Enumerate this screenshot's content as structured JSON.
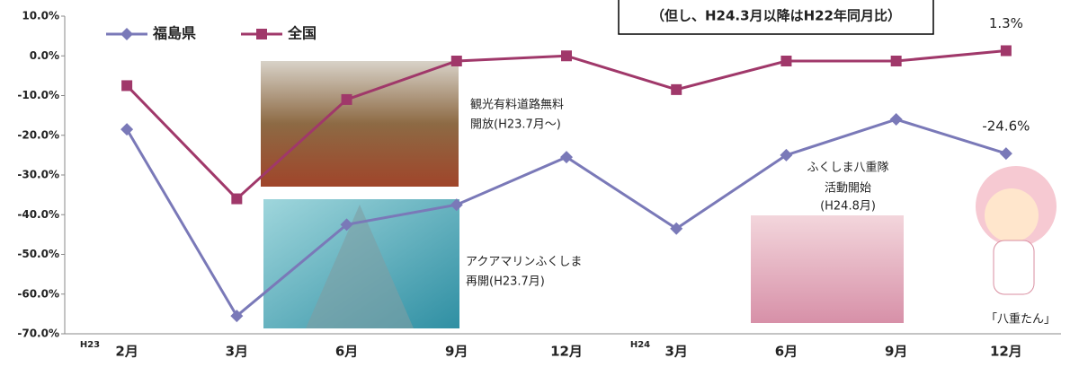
{
  "chart_data": {
    "type": "line",
    "categories": [
      "2月",
      "3月",
      "6月",
      "9月",
      "12月",
      "3月",
      "6月",
      "9月",
      "12月"
    ],
    "era_labels": [
      "H23",
      "H24"
    ],
    "series": [
      {
        "name": "福島県",
        "color": "#7a79b8",
        "marker": "diamond",
        "values": [
          -18.5,
          -65.5,
          -42.5,
          -37.5,
          -25.5,
          -43.5,
          -25,
          -16,
          -24.6
        ],
        "value_labels": [
          null,
          null,
          null,
          null,
          null,
          null,
          null,
          null,
          "-24.6%"
        ]
      },
      {
        "name": "全国",
        "color": "#a0386a",
        "marker": "square",
        "values": [
          -7.5,
          -36,
          -11,
          -1.3,
          0,
          -8.5,
          -1.3,
          -1.3,
          1.3
        ],
        "value_labels": [
          null,
          null,
          null,
          null,
          null,
          null,
          null,
          null,
          "1.3%"
        ]
      }
    ],
    "ylim": [
      -70,
      10
    ],
    "yticks": [
      {
        "value": -70,
        "label": "-70.0%"
      },
      {
        "value": -60,
        "label": "-60.0%"
      },
      {
        "value": -50,
        "label": "-50.0%"
      },
      {
        "value": -40,
        "label": "-40.0%"
      },
      {
        "value": -30,
        "label": "-30.0%"
      },
      {
        "value": -20,
        "label": "-20.0%"
      },
      {
        "value": -10,
        "label": "-10.0%"
      },
      {
        "value": 0,
        "label": "0.0%"
      },
      {
        "value": 10,
        "label": "10.0%"
      }
    ],
    "note": "（但し、H24.3月以降はH22年同月比）",
    "annotations": [
      "観光有料道路無料",
      "開放(H23.7月～)",
      "アクアマリンふくしま",
      "再開(H23.7月)",
      "ふくしま八重隊",
      "活動開始",
      "(H24.8月)",
      "「八重たん」"
    ]
  }
}
